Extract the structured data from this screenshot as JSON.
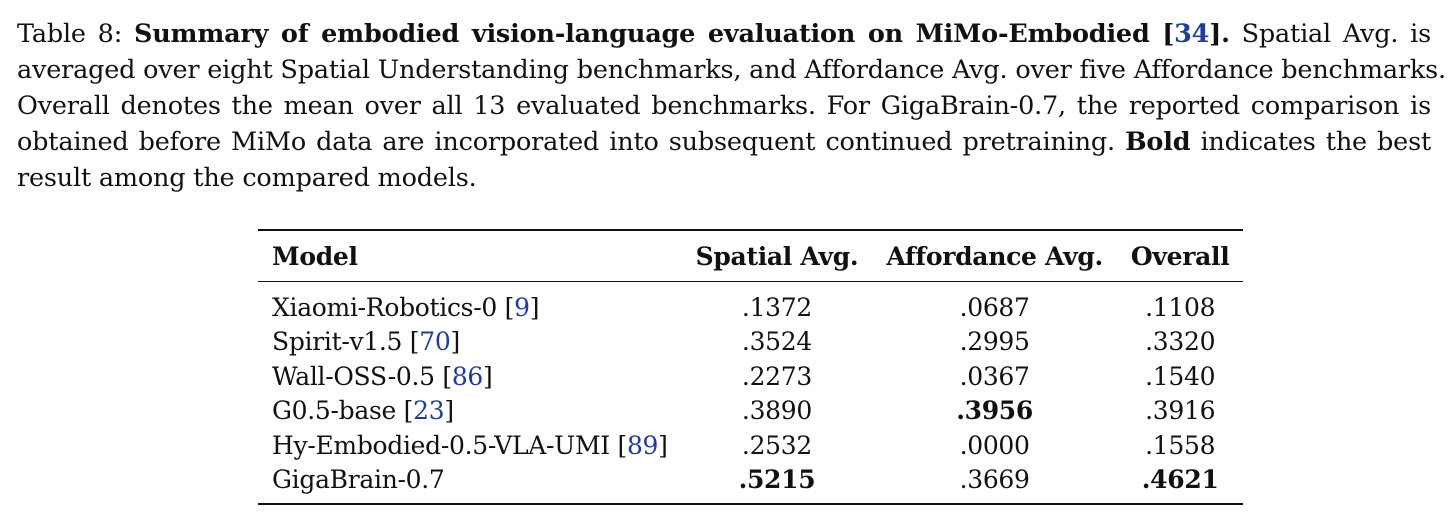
{
  "caption": {
    "label": "Table 8: ",
    "title_bold": "Summary of embodied vision-language evaluation on MiMo-Embodied [",
    "title_ref": "34",
    "title_end": "].",
    "line1_rest": " Spatial Avg. is",
    "line2": "averaged over eight Spatial Understanding benchmarks, and Affordance Avg. over five Affordance benchmarks.",
    "line3": "Overall denotes the mean over all 13 evaluated benchmarks. For GigaBrain-0.7, the reported comparison is",
    "line4_pre": "obtained before MiMo data are incorporated into subsequent continued pretraining. ",
    "line4_bold": "Bold",
    "line4_post": " indicates the best",
    "line5": "result among the compared models."
  },
  "table": {
    "headers": [
      "Model",
      "Spatial Avg.",
      "Affordance Avg.",
      "Overall"
    ],
    "rows": [
      {
        "model": "Xiaomi-Robotics-0 ",
        "ref": "9",
        "spatial": ".1372",
        "affordance": ".0687",
        "overall": ".1108"
      },
      {
        "model": "Spirit-v1.5 ",
        "ref": "70",
        "spatial": ".3524",
        "affordance": ".2995",
        "overall": ".3320"
      },
      {
        "model": "Wall-OSS-0.5 ",
        "ref": "86",
        "spatial": ".2273",
        "affordance": ".0367",
        "overall": ".1540"
      },
      {
        "model": "G0.5-base ",
        "ref": "23",
        "spatial": ".3890",
        "affordance": ".3956",
        "overall": ".3916"
      },
      {
        "model": "Hy-Embodied-0.5-VLA-UMI ",
        "ref": "89",
        "spatial": ".2532",
        "affordance": ".0000",
        "overall": ".1558"
      },
      {
        "model": "GigaBrain-0.7",
        "ref": "",
        "spatial": ".5215",
        "affordance": ".3669",
        "overall": ".4621"
      }
    ]
  }
}
